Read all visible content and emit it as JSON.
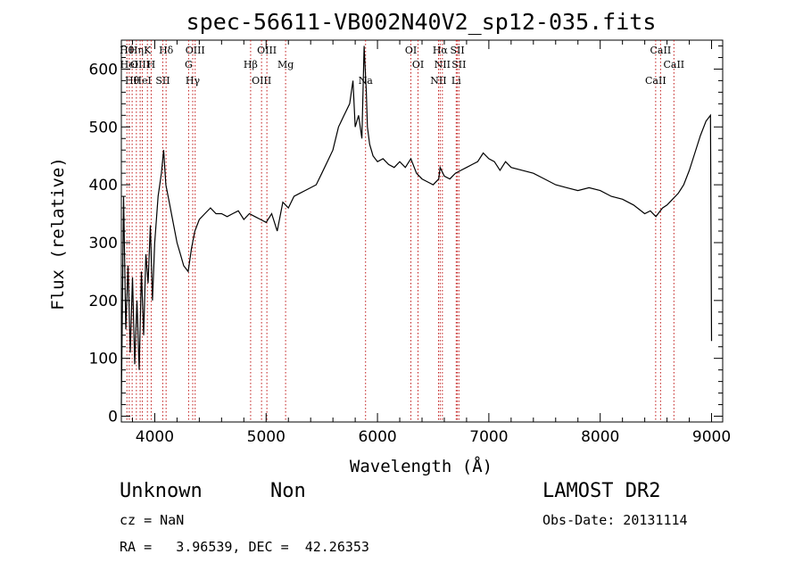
{
  "chart_data": {
    "type": "line",
    "title": "spec-56611-VB002N40V2_sp12-035.fits",
    "xlabel": "Wavelength (Å)",
    "ylabel": "Flux (relative)",
    "xlim": [
      3700,
      9100
    ],
    "ylim": [
      -10,
      650
    ],
    "xticks": [
      4000,
      5000,
      6000,
      7000,
      8000,
      9000
    ],
    "yticks": [
      0,
      100,
      200,
      300,
      400,
      500,
      600
    ],
    "grid": false,
    "series": [
      {
        "x": [
          3700,
          3720,
          3740,
          3760,
          3780,
          3800,
          3820,
          3840,
          3860,
          3880,
          3900,
          3920,
          3940,
          3960,
          3980,
          4000,
          4030,
          4060,
          4080,
          4100,
          4130,
          4160,
          4200,
          4230,
          4260,
          4300,
          4330,
          4360,
          4400,
          4450,
          4500,
          4550,
          4600,
          4650,
          4700,
          4750,
          4800,
          4850,
          4900,
          4950,
          5000,
          5050,
          5100,
          5150,
          5200,
          5250,
          5300,
          5350,
          5400,
          5450,
          5500,
          5550,
          5600,
          5650,
          5700,
          5750,
          5780,
          5800,
          5830,
          5860,
          5880,
          5890,
          5900,
          5910,
          5930,
          5960,
          6000,
          6050,
          6100,
          6150,
          6200,
          6250,
          6300,
          6350,
          6400,
          6450,
          6500,
          6550,
          6563,
          6600,
          6650,
          6700,
          6750,
          6800,
          6850,
          6900,
          6950,
          7000,
          7050,
          7100,
          7150,
          7200,
          7300,
          7400,
          7500,
          7600,
          7700,
          7800,
          7900,
          8000,
          8100,
          8200,
          8300,
          8400,
          8450,
          8500,
          8540,
          8560,
          8600,
          8650,
          8700,
          8750,
          8800,
          8850,
          8900,
          8950,
          8990,
          9000
        ],
        "y": [
          20,
          380,
          150,
          260,
          110,
          240,
          90,
          200,
          80,
          250,
          140,
          280,
          230,
          330,
          200,
          300,
          380,
          420,
          460,
          400,
          370,
          340,
          300,
          280,
          260,
          250,
          290,
          320,
          340,
          350,
          360,
          350,
          350,
          345,
          350,
          355,
          340,
          350,
          345,
          340,
          335,
          350,
          320,
          370,
          360,
          380,
          385,
          390,
          395,
          400,
          420,
          440,
          460,
          500,
          520,
          540,
          580,
          500,
          520,
          480,
          640,
          600,
          560,
          500,
          470,
          450,
          440,
          445,
          435,
          430,
          440,
          430,
          445,
          420,
          410,
          405,
          400,
          410,
          430,
          415,
          410,
          420,
          425,
          430,
          435,
          440,
          455,
          445,
          440,
          425,
          440,
          430,
          425,
          420,
          410,
          400,
          395,
          390,
          395,
          390,
          380,
          375,
          365,
          350,
          355,
          345,
          355,
          360,
          365,
          375,
          385,
          400,
          425,
          455,
          485,
          510,
          520,
          130
        ]
      }
    ],
    "lines": [
      {
        "wl": 3750,
        "label": "Hθ"
      },
      {
        "wl": 3771,
        "label": "HeI"
      },
      {
        "wl": 3797,
        "label": "Hθ"
      },
      {
        "wl": 3835,
        "label": "Hη"
      },
      {
        "wl": 3869,
        "label": "OIII"
      },
      {
        "wl": 3889,
        "label": "HeI"
      },
      {
        "wl": 3934,
        "label": "K"
      },
      {
        "wl": 3968,
        "label": "H"
      },
      {
        "wl": 4072,
        "label": "SII"
      },
      {
        "wl": 4102,
        "label": "Hδ"
      },
      {
        "wl": 4304,
        "label": "G"
      },
      {
        "wl": 4341,
        "label": "Hγ"
      },
      {
        "wl": 4363,
        "label": "OIII"
      },
      {
        "wl": 4861,
        "label": "Hβ"
      },
      {
        "wl": 4959,
        "label": "OIII"
      },
      {
        "wl": 5007,
        "label": "OIII"
      },
      {
        "wl": 5175,
        "label": "Mg"
      },
      {
        "wl": 5893,
        "label": "Na"
      },
      {
        "wl": 6300,
        "label": "OI"
      },
      {
        "wl": 6364,
        "label": "OI"
      },
      {
        "wl": 6548,
        "label": "NII"
      },
      {
        "wl": 6563,
        "label": "Hα"
      },
      {
        "wl": 6583,
        "label": "NII"
      },
      {
        "wl": 6707,
        "label": "Li"
      },
      {
        "wl": 6717,
        "label": "SII"
      },
      {
        "wl": 6731,
        "label": "SII"
      },
      {
        "wl": 8498,
        "label": "CaII"
      },
      {
        "wl": 8542,
        "label": "CaII"
      },
      {
        "wl": 8662,
        "label": "CaII"
      }
    ],
    "line_color": "#c01818"
  },
  "info": {
    "object_class": "Unknown",
    "subclass": "Non",
    "survey": "LAMOST DR2",
    "cz": "cz = NaN",
    "obs_date": "Obs-Date: 20131114",
    "coords": "RA =   3.96539, DEC =  42.26353"
  }
}
